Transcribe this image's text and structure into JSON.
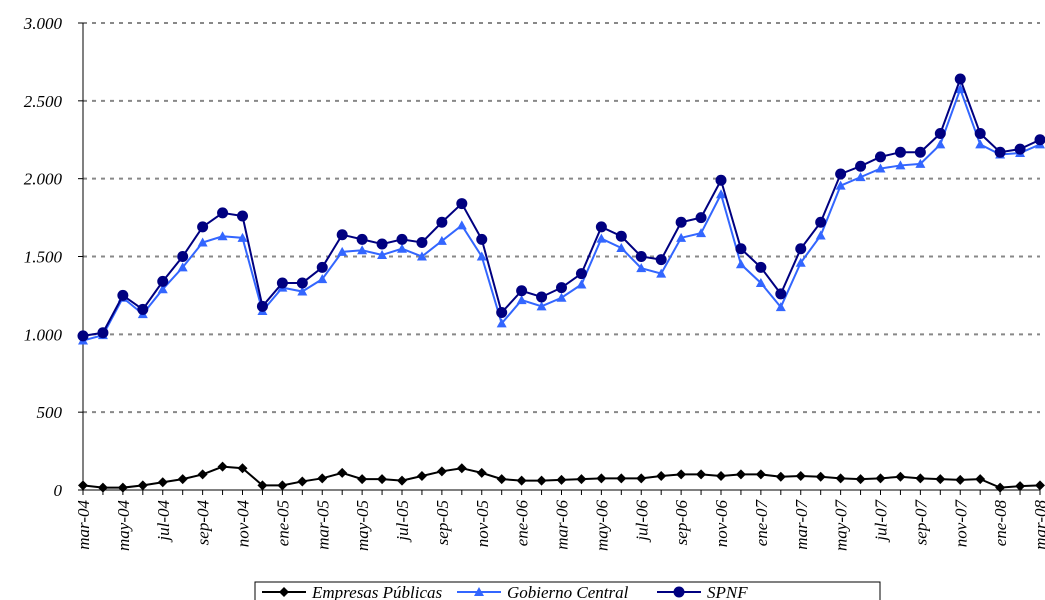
{
  "chart_data": {
    "type": "line",
    "categories": [
      "mar-04",
      null,
      "may-04",
      null,
      "jul-04",
      null,
      "sep-04",
      null,
      "nov-04",
      null,
      "ene-05",
      null,
      "mar-05",
      null,
      "may-05",
      null,
      "jul-05",
      null,
      "sep-05",
      null,
      "nov-05",
      null,
      "ene-06",
      null,
      "mar-06",
      null,
      "may-06",
      null,
      "jul-06",
      null,
      "sep-06",
      null,
      "nov-06",
      null,
      "ene-07",
      null,
      "mar-07",
      null,
      "may-07",
      null,
      "jul-07",
      null,
      "sep-07",
      null,
      "nov-07",
      null,
      "ene-08",
      null,
      "mar-08"
    ],
    "series": [
      {
        "name": "Empresas Públicas",
        "color": "#000000",
        "marker": "diamond",
        "values": [
          30,
          15,
          15,
          30,
          50,
          70,
          100,
          150,
          140,
          30,
          30,
          55,
          75,
          110,
          70,
          70,
          60,
          90,
          120,
          140,
          110,
          70,
          60,
          60,
          65,
          70,
          75,
          75,
          75,
          90,
          100,
          100,
          90,
          100,
          100,
          85,
          90,
          85,
          75,
          70,
          75,
          85,
          75,
          70,
          65,
          70,
          15,
          25,
          30
        ]
      },
      {
        "name": "Gobierno Central",
        "color": "#3366ff",
        "marker": "triangle",
        "values": [
          960,
          995,
          1235,
          1130,
          1290,
          1430,
          1590,
          1630,
          1620,
          1150,
          1300,
          1275,
          1355,
          1530,
          1540,
          1510,
          1550,
          1500,
          1600,
          1700,
          1500,
          1070,
          1220,
          1180,
          1235,
          1320,
          1615,
          1555,
          1425,
          1390,
          1620,
          1650,
          1900,
          1450,
          1330,
          1175,
          1460,
          1635,
          1955,
          2010,
          2065,
          2085,
          2095,
          2220,
          2575,
          2220,
          2155,
          2165,
          2220
        ]
      },
      {
        "name": "SPNF",
        "color": "#000080",
        "marker": "circle",
        "values": [
          990,
          1010,
          1250,
          1160,
          1340,
          1500,
          1690,
          1780,
          1760,
          1180,
          1330,
          1330,
          1430,
          1640,
          1610,
          1580,
          1610,
          1590,
          1720,
          1840,
          1610,
          1140,
          1280,
          1240,
          1300,
          1390,
          1690,
          1630,
          1500,
          1480,
          1720,
          1750,
          1990,
          1550,
          1430,
          1260,
          1550,
          1720,
          2030,
          2080,
          2140,
          2170,
          2170,
          2290,
          2640,
          2290,
          2170,
          2190,
          2250
        ]
      }
    ],
    "ylim": [
      0,
      3000
    ],
    "yticks": [
      0,
      500,
      {
        "value": 1000,
        "label": "1.000"
      },
      {
        "value": 1500,
        "label": "1.500"
      },
      {
        "value": 2000,
        "label": "2.000"
      },
      {
        "value": 2500,
        "label": "2.500"
      },
      {
        "value": 3000,
        "label": "3.000"
      }
    ],
    "grid": true,
    "legend": "bottom"
  }
}
